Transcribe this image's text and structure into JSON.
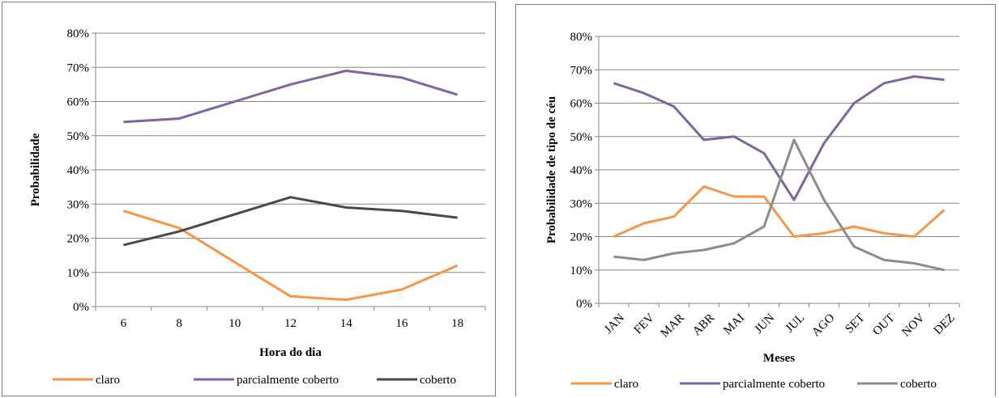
{
  "chart_data": [
    {
      "type": "line",
      "title": "",
      "xlabel": "Hora do dia",
      "ylabel": "Probabilidade",
      "categories": [
        "6",
        "8",
        "10",
        "12",
        "14",
        "16",
        "18"
      ],
      "ylim": [
        0,
        80
      ],
      "yticks": [
        "0%",
        "10%",
        "20%",
        "30%",
        "40%",
        "50%",
        "60%",
        "70%",
        "80%"
      ],
      "grid": true,
      "legend_position": "bottom",
      "series": [
        {
          "name": "claro",
          "color": "#f79646",
          "values": [
            28,
            23,
            13,
            3,
            2,
            5,
            12
          ]
        },
        {
          "name": "parcialmente coberto",
          "color": "#8064a2",
          "values": [
            54,
            55,
            60,
            65,
            69,
            67,
            62
          ]
        },
        {
          "name": "coberto",
          "color": "#4a4a4a",
          "values": [
            18,
            22,
            27,
            32,
            29,
            28,
            26
          ]
        }
      ]
    },
    {
      "type": "line",
      "title": "",
      "xlabel": "Meses",
      "ylabel": "Probabilidade de tipo de céu",
      "categories": [
        "JAN",
        "FEV",
        "MAR",
        "ABR",
        "MAI",
        "JUN",
        "JUL",
        "AGO",
        "SET",
        "OUT",
        "NOV",
        "DEZ"
      ],
      "ylim": [
        0,
        80
      ],
      "yticks": [
        "0%",
        "10%",
        "20%",
        "30%",
        "40%",
        "50%",
        "60%",
        "70%",
        "80%"
      ],
      "grid": true,
      "legend_position": "bottom",
      "series": [
        {
          "name": "claro",
          "color": "#f79646",
          "values": [
            20,
            24,
            26,
            35,
            32,
            32,
            20,
            21,
            23,
            21,
            20,
            28
          ]
        },
        {
          "name": "parcialmente coberto",
          "color": "#8064a2",
          "values": [
            66,
            63,
            59,
            49,
            50,
            45,
            31,
            48,
            60,
            66,
            68,
            67
          ]
        },
        {
          "name": "coberto",
          "color": "#8c8c8c",
          "values": [
            14,
            13,
            15,
            16,
            18,
            23,
            49,
            31,
            17,
            13,
            12,
            10
          ]
        }
      ]
    }
  ]
}
